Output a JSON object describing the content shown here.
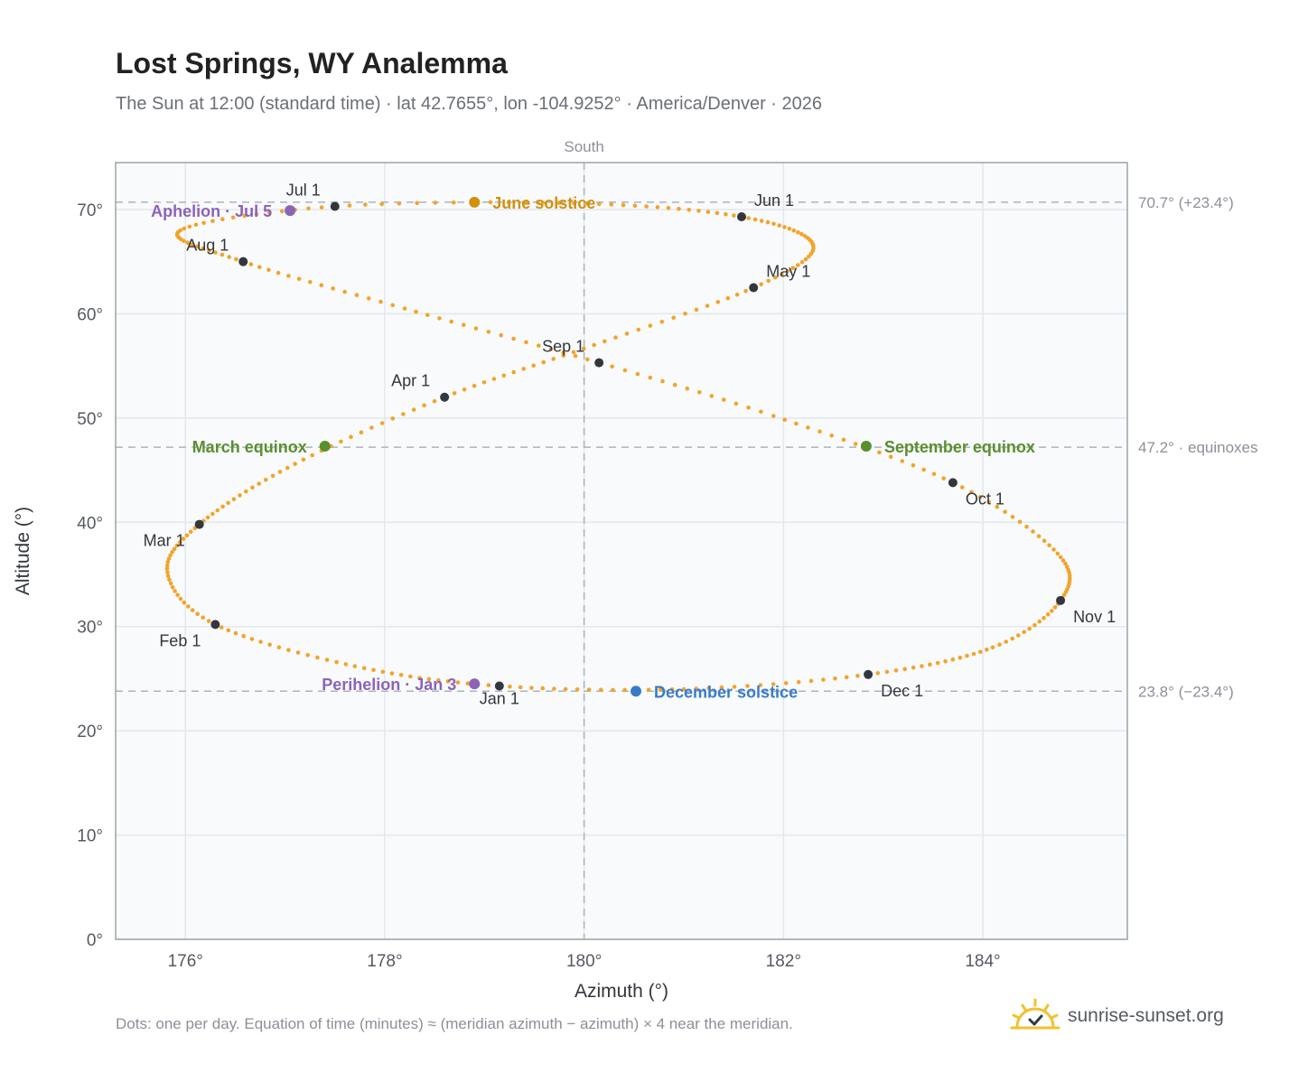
{
  "header": {
    "title": "Lost Springs, WY Analemma",
    "subtitle": "The Sun at 12:00 (standard time) · lat 42.7655°, lon -104.9252° · America/Denver · 2026"
  },
  "footer": {
    "note": "Dots: one per day. Equation of time (minutes) ≈ (meridian azimuth − azimuth) × 4 near the meridian.",
    "brand": "sunrise-sunset.org",
    "brand_icon": "sun-logo-icon"
  },
  "colors": {
    "path": "#f2a42a",
    "month": "#33373d",
    "solstice_june": "#d4900c",
    "solstice_december": "#3a7bc8",
    "equinox": "#5a8f2e",
    "apsis": "#8c63b8",
    "reference_line": "#aab4bf",
    "axis": "#9aa3ad",
    "grid": "#e3e8ed",
    "plot_bg": "#f8fafc"
  },
  "chart_data": {
    "type": "scatter",
    "xlabel": "Azimuth (°)",
    "ylabel": "Altitude (°)",
    "xlim": [
      175.3,
      185.45
    ],
    "ylim": [
      0,
      74.5
    ],
    "xticks": [
      176,
      178,
      180,
      182,
      184
    ],
    "xtick_labels": [
      "176°",
      "178°",
      "180°",
      "182°",
      "184°"
    ],
    "yticks": [
      0,
      10,
      20,
      30,
      40,
      50,
      60,
      70
    ],
    "ytick_labels": [
      "0°",
      "10°",
      "20°",
      "30°",
      "40°",
      "50°",
      "60°",
      "70°"
    ],
    "grid": true,
    "meridian": {
      "azimuth": 180,
      "label": "South"
    },
    "reference_lines": [
      {
        "altitude": 70.7,
        "label": "70.7° (+23.4°)"
      },
      {
        "altitude": 47.2,
        "label": "47.2° · equinoxes"
      },
      {
        "altitude": 23.8,
        "label": "23.8° (−23.4°)"
      }
    ],
    "analemma_anchors": [
      {
        "day": 1,
        "az": 179.15,
        "alt": 24.3
      },
      {
        "day": 16,
        "az": 177.7,
        "alt": 26.2
      },
      {
        "day": 32,
        "az": 176.3,
        "alt": 30.2
      },
      {
        "day": 46,
        "az": 175.82,
        "alt": 35.2
      },
      {
        "day": 60,
        "az": 176.14,
        "alt": 39.8
      },
      {
        "day": 76,
        "az": 177.1,
        "alt": 45.6
      },
      {
        "day": 91,
        "az": 178.6,
        "alt": 52.0
      },
      {
        "day": 106,
        "az": 180.1,
        "alt": 57.0
      },
      {
        "day": 121,
        "az": 181.7,
        "alt": 62.5
      },
      {
        "day": 135,
        "az": 182.3,
        "alt": 66.5
      },
      {
        "day": 152,
        "az": 181.58,
        "alt": 69.3
      },
      {
        "day": 168,
        "az": 179.9,
        "alt": 70.6
      },
      {
        "day": 182,
        "az": 177.5,
        "alt": 70.3
      },
      {
        "day": 197,
        "az": 175.95,
        "alt": 68.0
      },
      {
        "day": 213,
        "az": 176.58,
        "alt": 65.0
      },
      {
        "day": 228,
        "az": 178.2,
        "alt": 60.5
      },
      {
        "day": 244,
        "az": 180.15,
        "alt": 55.3
      },
      {
        "day": 258,
        "az": 181.9,
        "alt": 50.2
      },
      {
        "day": 274,
        "az": 183.7,
        "alt": 43.8
      },
      {
        "day": 289,
        "az": 184.75,
        "alt": 37.0
      },
      {
        "day": 305,
        "az": 184.78,
        "alt": 32.5
      },
      {
        "day": 319,
        "az": 184.1,
        "alt": 28.0
      },
      {
        "day": 335,
        "az": 182.85,
        "alt": 25.4
      },
      {
        "day": 350,
        "az": 181.0,
        "alt": 24.0
      },
      {
        "day": 366,
        "az": 179.15,
        "alt": 24.3
      }
    ],
    "months": [
      {
        "label": "Jan 1",
        "az": 179.15,
        "alt": 24.3,
        "anchor": "below"
      },
      {
        "label": "Feb 1",
        "az": 176.3,
        "alt": 30.2,
        "anchor": "below-left"
      },
      {
        "label": "Mar 1",
        "az": 176.14,
        "alt": 39.8,
        "anchor": "below-left"
      },
      {
        "label": "Apr 1",
        "az": 178.6,
        "alt": 52.0,
        "anchor": "above-left"
      },
      {
        "label": "May 1",
        "az": 181.7,
        "alt": 62.5,
        "anchor": "above-right"
      },
      {
        "label": "Jun 1",
        "az": 181.58,
        "alt": 69.3,
        "anchor": "above-right"
      },
      {
        "label": "Jul 1",
        "az": 177.5,
        "alt": 70.3,
        "anchor": "above-left"
      },
      {
        "label": "Aug 1",
        "az": 176.58,
        "alt": 65.0,
        "anchor": "above-left"
      },
      {
        "label": "Sep 1",
        "az": 180.15,
        "alt": 55.3,
        "anchor": "above-left"
      },
      {
        "label": "Oct 1",
        "az": 183.7,
        "alt": 43.8,
        "anchor": "below-right"
      },
      {
        "label": "Nov 1",
        "az": 184.78,
        "alt": 32.5,
        "anchor": "below-right"
      },
      {
        "label": "Dec 1",
        "az": 182.85,
        "alt": 25.4,
        "anchor": "below-right"
      }
    ],
    "events": [
      {
        "label": "June solstice",
        "az": 178.9,
        "alt": 70.7,
        "kind": "solstice_june",
        "side": "right"
      },
      {
        "label": "December solstice",
        "az": 180.52,
        "alt": 23.8,
        "kind": "solstice_december",
        "side": "right"
      },
      {
        "label": "March equinox",
        "az": 177.4,
        "alt": 47.3,
        "kind": "equinox",
        "side": "left"
      },
      {
        "label": "September equinox",
        "az": 182.83,
        "alt": 47.3,
        "kind": "equinox",
        "side": "right"
      },
      {
        "label": "Aphelion · Jul 5",
        "az": 177.05,
        "alt": 69.9,
        "kind": "apsis",
        "side": "left"
      },
      {
        "label": "Perihelion · Jan 3",
        "az": 178.9,
        "alt": 24.5,
        "kind": "apsis",
        "side": "left"
      }
    ]
  }
}
